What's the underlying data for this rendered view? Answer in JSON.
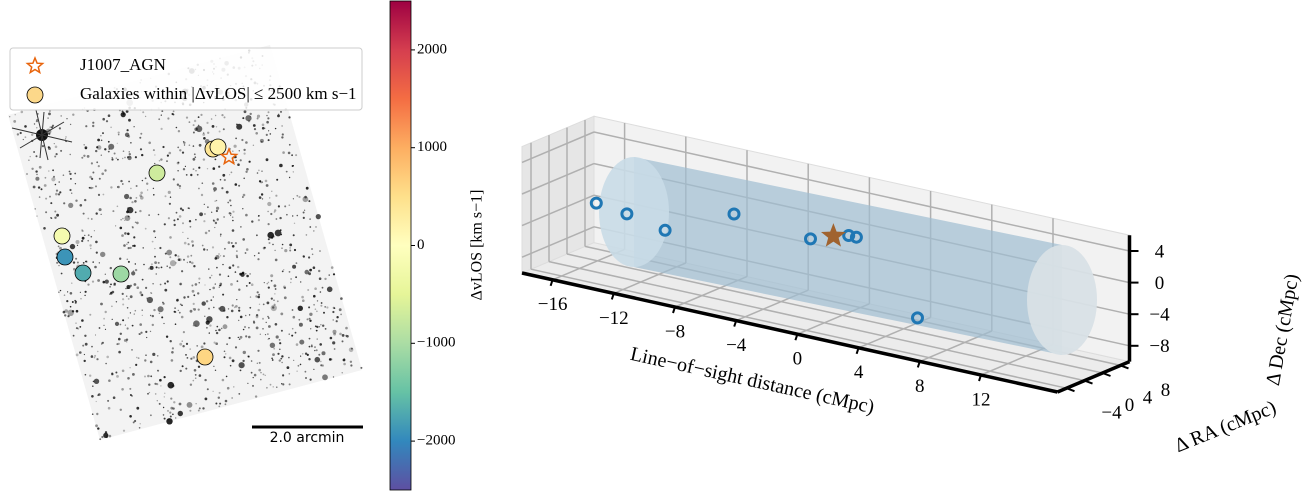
{
  "chart_data": [
    {
      "type": "sky",
      "legend": {
        "agn": "J1007_AGN",
        "galaxies": "Galaxies within |ΔvLOS| ≤ 2500 km s−1"
      },
      "agn_color": "#e8640c",
      "scale_bar": "2.0 arcmin",
      "values": [
        400,
        200,
        -700,
        -200,
        -1900,
        -1700,
        -1100,
        600
      ],
      "colorbar": {
        "label": "ΔvLOS [km s−1]",
        "lim": [
          -2500,
          2500
        ],
        "ticks": [
          {
            "value": -2000,
            "label": "−2000"
          },
          {
            "value": -1000,
            "label": "−1000"
          },
          0,
          1000,
          2000
        ],
        "colormap": [
          "#5e4fa2",
          "#3288bd",
          "#66c2a5",
          "#abdda4",
          "#e6f598",
          "#ffffbf",
          "#fee08b",
          "#fdae61",
          "#f46d43",
          "#d53e4f",
          "#9e0142"
        ]
      }
    },
    {
      "type": "scatter3d",
      "xlabel": "Line−of−sight distance (cMpc)",
      "ylabel": "Δ RA (cMpc)",
      "zlabel": "Δ Dec (cMpc)",
      "x": [
        -15.5,
        -13.5,
        -11,
        -6.5,
        -1.5,
        1,
        1.5,
        5.5
      ],
      "y": [
        2,
        2,
        2,
        2,
        2,
        2,
        2,
        2
      ],
      "z": [
        -2,
        -2.5,
        -3.5,
        0.5,
        -0.5,
        1,
        1,
        -7.5
      ],
      "color": "#1f77b4",
      "agn": {
        "x": 0,
        "y": 2,
        "z": 0.5,
        "color": "#a0632f"
      },
      "xlim": [
        -18,
        17
      ],
      "ylim": [
        -6,
        10
      ],
      "zlim": [
        -10,
        6
      ],
      "xticks": [
        {
          "value": -16,
          "label": "−16"
        },
        {
          "value": -12,
          "label": "−12"
        },
        {
          "value": -8,
          "label": "−8"
        },
        {
          "value": -4,
          "label": "−4"
        },
        0,
        4,
        8,
        12
      ],
      "yticks": [
        {
          "value": -4,
          "label": "−4"
        },
        0,
        4,
        8
      ],
      "zticks": [
        4,
        0,
        {
          "value": -4,
          "label": "−4"
        },
        {
          "value": -8,
          "label": "−8"
        }
      ],
      "grid": true
    }
  ]
}
